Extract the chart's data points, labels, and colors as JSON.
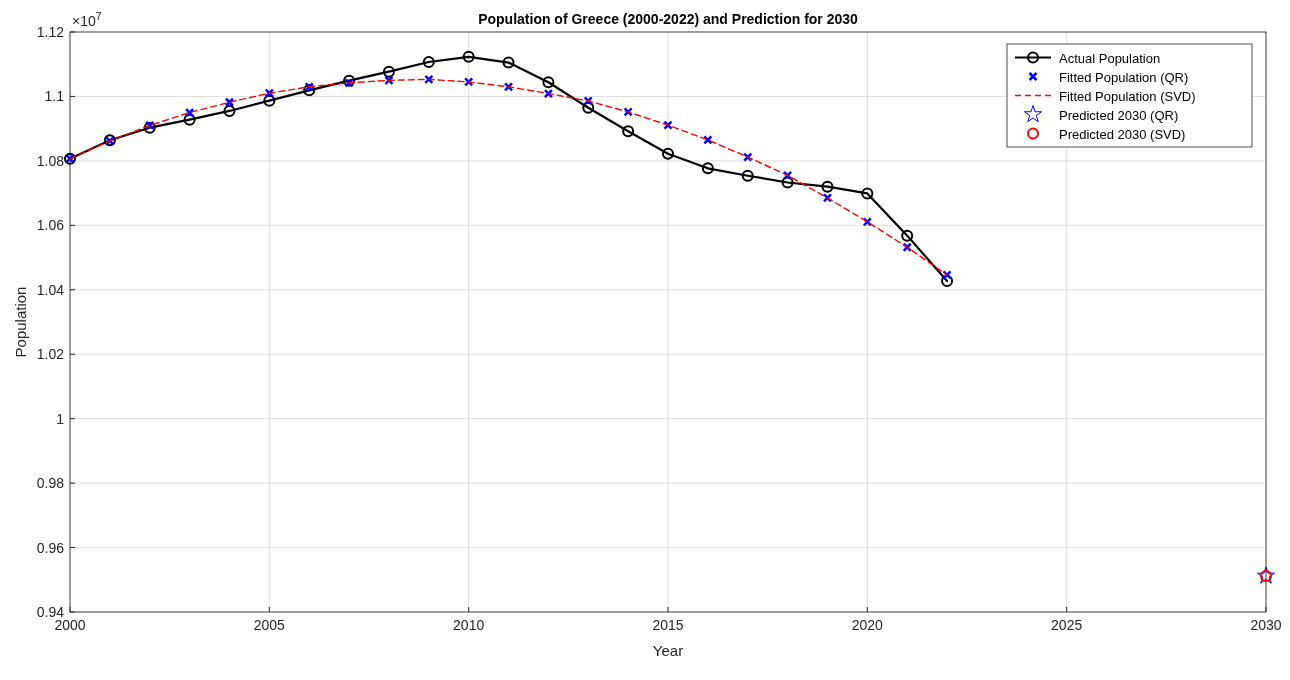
{
  "chart_data": {
    "type": "line",
    "title": "Population of Greece (2000-2022) and Prediction for 2030",
    "xlabel": "Year",
    "ylabel": "Population",
    "annotations": [
      "×10$^{7}$"
    ],
    "xlim": [
      2000,
      2030
    ],
    "xticks": [
      2000,
      2005,
      2010,
      2015,
      2020,
      2025,
      2030
    ],
    "ylim": [
      0.94,
      1.12
    ],
    "yticks": [
      0.94,
      0.96,
      0.98,
      1,
      1.02,
      1.04,
      1.06,
      1.08,
      1.1,
      1.12
    ],
    "grid": true,
    "legend": "top right",
    "series": [
      {
        "name": "Actual Population",
        "color": "#000000",
        "marker": "circle",
        "line_style": "solid",
        "x": [
          2000,
          2001,
          2002,
          2003,
          2004,
          2005,
          2006,
          2007,
          2008,
          2009,
          2010,
          2011,
          2012,
          2013,
          2014,
          2015,
          2016,
          2017,
          2018,
          2019,
          2020,
          2021,
          2022
        ],
        "values": [
          1.0807,
          1.0864,
          1.0903,
          1.0928,
          1.0955,
          1.0987,
          1.1019,
          1.1049,
          1.1077,
          1.1107,
          1.1123,
          1.1105,
          1.1044,
          1.0965,
          1.0892,
          1.0822,
          1.0777,
          1.0754,
          1.0733,
          1.072,
          1.0699,
          1.0568,
          1.0427
        ]
      },
      {
        "name": "Fitted Population (QR)",
        "type": "scatter",
        "color": "#0000ff",
        "marker": "cross",
        "x": [
          2000,
          2001,
          2002,
          2003,
          2004,
          2005,
          2006,
          2007,
          2008,
          2009,
          2010,
          2011,
          2012,
          2013,
          2014,
          2015,
          2016,
          2017,
          2018,
          2019,
          2020,
          2021,
          2022
        ],
        "values": [
          1.0807,
          1.0862,
          1.091,
          1.095,
          1.0982,
          1.101,
          1.103,
          1.1042,
          1.105,
          1.1053,
          1.1045,
          1.103,
          1.1009,
          1.0986,
          1.0952,
          1.0911,
          1.0865,
          1.0812,
          1.0755,
          1.0685,
          1.0611,
          1.0532,
          1.0446
        ]
      },
      {
        "name": "Fitted Population (SVD)",
        "color": "#ff0000",
        "marker": "none",
        "line_style": "dashed",
        "x": [
          2000,
          2001,
          2002,
          2003,
          2004,
          2005,
          2006,
          2007,
          2008,
          2009,
          2010,
          2011,
          2012,
          2013,
          2014,
          2015,
          2016,
          2017,
          2018,
          2019,
          2020,
          2021,
          2022
        ],
        "values": [
          1.0807,
          1.0862,
          1.091,
          1.095,
          1.0982,
          1.101,
          1.103,
          1.1042,
          1.105,
          1.1053,
          1.1045,
          1.103,
          1.1009,
          1.0986,
          1.0952,
          1.0911,
          1.0865,
          1.0812,
          1.0755,
          1.0685,
          1.0611,
          1.0532,
          1.0446
        ]
      },
      {
        "name": "Predicted 2030 (QR)",
        "type": "scatter",
        "color": "#0000ff",
        "marker": "star",
        "x": [
          2030
        ],
        "values": [
          0.9512
        ]
      },
      {
        "name": "Predicted 2030 (SVD)",
        "type": "scatter",
        "color": "#ff0000",
        "marker": "circle",
        "x": [
          2030
        ],
        "values": [
          0.9512
        ]
      }
    ]
  }
}
